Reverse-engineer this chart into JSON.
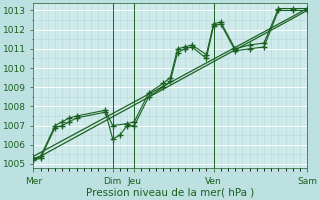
{
  "bg_color": "#bde0e0",
  "plot_bg_color": "#ceeaea",
  "grid_major_color": "#ffffff",
  "grid_minor_color": "#b8d8d8",
  "line_color": "#1a6020",
  "xlabel": "Pression niveau de la mer( hPa )",
  "xlabel_fontsize": 7.5,
  "ylabel_fontsize": 6.5,
  "tick_label_color": "#1a6020",
  "ylim": [
    1004.8,
    1013.4
  ],
  "yticks": [
    1005,
    1006,
    1007,
    1008,
    1009,
    1010,
    1011,
    1012,
    1013
  ],
  "xlim": [
    0,
    19
  ],
  "xtick_labels": [
    "Mer",
    "Dim",
    "Jeu",
    "Ven",
    "Sam"
  ],
  "xtick_positions": [
    0,
    5.5,
    7,
    12.5,
    19
  ],
  "day_vlines_x": [
    5.5,
    7,
    12.5,
    19
  ],
  "series1_x": [
    0,
    0.5,
    1.5,
    2,
    2.5,
    3,
    5,
    5.5,
    6,
    6.5,
    7,
    8,
    9,
    9.5,
    10,
    10.5,
    11,
    12,
    12.5,
    13,
    14,
    15,
    16,
    17,
    18,
    19
  ],
  "series1_y": [
    1005.2,
    1005.3,
    1006.9,
    1007.0,
    1007.2,
    1007.4,
    1007.7,
    1006.3,
    1006.5,
    1007.0,
    1007.0,
    1008.5,
    1009.0,
    1009.3,
    1010.8,
    1011.0,
    1011.1,
    1010.5,
    1012.2,
    1012.3,
    1010.9,
    1011.0,
    1011.1,
    1013.0,
    1013.0,
    1013.0
  ],
  "series2_x": [
    0,
    0.5,
    1.5,
    2,
    2.5,
    3,
    5,
    5.5,
    6.5,
    7,
    8,
    9,
    9.5,
    10,
    10.5,
    11,
    12,
    12.5,
    13,
    14,
    15,
    16,
    17,
    18,
    19
  ],
  "series2_y": [
    1005.3,
    1005.4,
    1007.0,
    1007.2,
    1007.4,
    1007.5,
    1007.8,
    1007.0,
    1007.1,
    1007.2,
    1008.7,
    1009.2,
    1009.5,
    1011.0,
    1011.1,
    1011.2,
    1010.7,
    1012.3,
    1012.4,
    1011.0,
    1011.2,
    1011.3,
    1013.1,
    1013.1,
    1013.1
  ],
  "trend1_x": [
    0,
    19
  ],
  "trend1_y": [
    1005.2,
    1013.0
  ],
  "trend2_x": [
    0,
    19
  ],
  "trend2_y": [
    1005.4,
    1013.1
  ]
}
